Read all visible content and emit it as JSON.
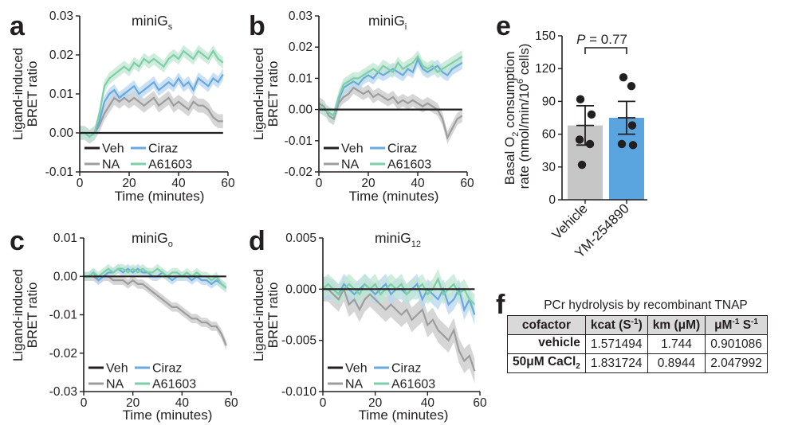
{
  "panels": {
    "a": {
      "label": "a",
      "title_main": "miniG",
      "title_sub": "s"
    },
    "b": {
      "label": "b",
      "title_main": "miniG",
      "title_sub": "i"
    },
    "c": {
      "label": "c",
      "title_main": "miniG",
      "title_sub": "o"
    },
    "d": {
      "label": "d",
      "title_main": "miniG",
      "title_sub": "12"
    },
    "e": {
      "label": "e"
    },
    "f": {
      "label": "f"
    }
  },
  "legend": {
    "veh": "Veh",
    "ciraz": "Ciraz",
    "na": "NA",
    "a61603": "A61603"
  },
  "axes": {
    "bret_ylabel_line1": "Ligand-induced",
    "bret_ylabel_line2": "BRET ratio",
    "time_xlabel": "Time (minutes)",
    "e_ylabel_line1_a": "Basal O",
    "e_ylabel_line1_sub": "2",
    "e_ylabel_line1_b": " consumption",
    "e_ylabel_line2_a": "rate (nmol/min/10",
    "e_ylabel_line2_sup": "6",
    "e_ylabel_line2_b": " cells)",
    "e_pvalue_italic": "P",
    "e_pvalue_rest": " = 0.77"
  },
  "colors": {
    "veh": "#231f20",
    "na": "#9d9d9d",
    "na_band": "#c8c8c8",
    "ciraz": "#6aa9df",
    "ciraz_band": "#b8d6f1",
    "a61603": "#7ccfa6",
    "a61603_band": "#bfe6d0",
    "vehicle_bar": "#c6c6c6",
    "ym_bar": "#5aa5e0"
  },
  "table": {
    "title": "PCr hydrolysis by recombinant TNAP",
    "headers": {
      "cofactor": "cofactor",
      "kcat_a": "kcat (S",
      "kcat_sup": "-1",
      "kcat_b": ")",
      "km": "km (μM)",
      "eff_a": "μM",
      "eff_sup1": "-1",
      "eff_b": " S",
      "eff_sup2": "-1"
    },
    "rows": [
      {
        "cofactor_a": "vehicle",
        "cofactor_sub": "",
        "kcat": "1.571494",
        "km": "1.744",
        "eff": "0.901086"
      },
      {
        "cofactor_a": "50μM CaCl",
        "cofactor_sub": "2",
        "kcat": "1.831724",
        "km": "0.8944",
        "eff": "2.047992"
      }
    ]
  },
  "chart_data": [
    {
      "panel": "a",
      "type": "line",
      "title": "miniGs",
      "xlabel": "Time (minutes)",
      "ylabel": "Ligand-induced BRET ratio",
      "xlim": [
        0,
        60
      ],
      "ylim": [
        -0.01,
        0.03
      ],
      "xticks": [
        "0",
        "20",
        "40",
        "60"
      ],
      "yticks": [
        "-0.01",
        "0.00",
        "0.01",
        "0.02",
        "0.03"
      ],
      "legend_position": "bottom-left",
      "x": [
        0,
        2,
        4,
        6,
        8,
        10,
        12,
        14,
        16,
        18,
        20,
        22,
        24,
        26,
        28,
        30,
        32,
        34,
        36,
        38,
        40,
        42,
        44,
        46,
        48,
        50,
        52,
        54,
        56,
        58
      ],
      "series": [
        {
          "name": "Veh",
          "values": [
            0,
            0,
            0,
            0,
            0,
            0,
            0,
            0,
            0,
            0,
            0,
            0,
            0,
            0,
            0,
            0,
            0,
            0,
            0,
            0,
            0,
            0,
            0,
            0,
            0,
            0,
            0,
            0,
            0,
            0
          ],
          "err": 0
        },
        {
          "name": "NA",
          "values": [
            0,
            0,
            -0.001,
            0,
            0.002,
            0.005,
            0.007,
            0.009,
            0.008,
            0.009,
            0.008,
            0.009,
            0.008,
            0.007,
            0.008,
            0.009,
            0.007,
            0.008,
            0.009,
            0.007,
            0.008,
            0.007,
            0.006,
            0.008,
            0.007,
            0.007,
            0.006,
            0.004,
            0.003,
            0.003
          ],
          "err": 0.0018
        },
        {
          "name": "Ciraz",
          "values": [
            0,
            0,
            -0.001,
            0,
            0.003,
            0.008,
            0.01,
            0.011,
            0.009,
            0.01,
            0.011,
            0.012,
            0.01,
            0.011,
            0.012,
            0.013,
            0.011,
            0.012,
            0.013,
            0.012,
            0.014,
            0.012,
            0.013,
            0.011,
            0.014,
            0.013,
            0.012,
            0.014,
            0.013,
            0.015
          ],
          "err": 0.0015
        },
        {
          "name": "A61603",
          "values": [
            0,
            0,
            -0.001,
            0,
            0.005,
            0.012,
            0.014,
            0.015,
            0.016,
            0.017,
            0.016,
            0.018,
            0.017,
            0.019,
            0.018,
            0.019,
            0.018,
            0.017,
            0.019,
            0.02,
            0.019,
            0.021,
            0.02,
            0.019,
            0.021,
            0.02,
            0.019,
            0.021,
            0.019,
            0.018
          ],
          "err": 0.0015
        }
      ]
    },
    {
      "panel": "b",
      "type": "line",
      "title": "miniGi",
      "xlabel": "Time (minutes)",
      "ylabel": "Ligand-induced BRET ratio",
      "xlim": [
        0,
        60
      ],
      "ylim": [
        -0.02,
        0.03
      ],
      "xticks": [
        "0",
        "20",
        "40",
        "60"
      ],
      "yticks": [
        "-0.02",
        "-0.01",
        "0.00",
        "0.01",
        "0.02",
        "0.03"
      ],
      "legend_position": "bottom-left",
      "x": [
        0,
        2,
        4,
        6,
        8,
        10,
        12,
        14,
        16,
        18,
        20,
        22,
        24,
        26,
        28,
        30,
        32,
        34,
        36,
        38,
        40,
        42,
        44,
        46,
        48,
        50,
        52,
        54,
        56,
        58
      ],
      "series": [
        {
          "name": "Veh",
          "values": [
            0,
            0,
            0,
            0,
            0,
            0,
            0,
            0,
            0,
            0,
            0,
            0,
            0,
            0,
            0,
            0,
            0,
            0,
            0,
            0,
            0,
            0,
            0,
            0,
            0,
            0,
            0,
            0,
            0,
            0
          ],
          "err": 0
        },
        {
          "name": "NA",
          "values": [
            0.002,
            0.001,
            -0.002,
            -0.003,
            0.002,
            0.004,
            0.005,
            0.007,
            0.006,
            0.005,
            0.006,
            0.004,
            0.005,
            0.004,
            0.003,
            0.004,
            0.002,
            0.003,
            0.002,
            0.003,
            0.002,
            0.001,
            0.002,
            0.001,
            0,
            -0.003,
            -0.009,
            -0.006,
            -0.003,
            -0.002
          ],
          "err": 0.002
        },
        {
          "name": "Ciraz",
          "values": [
            0.001,
            0,
            -0.001,
            -0.002,
            0.003,
            0.007,
            0.008,
            0.009,
            0.008,
            0.01,
            0.011,
            0.01,
            0.012,
            0.011,
            0.012,
            0.013,
            0.012,
            0.011,
            0.013,
            0.012,
            0.016,
            0.013,
            0.012,
            0.013,
            0.014,
            0.012,
            0.011,
            0.013,
            0.014,
            0.015
          ],
          "err": 0.002
        },
        {
          "name": "A61603",
          "values": [
            0.001,
            0,
            -0.001,
            -0.002,
            0.004,
            0.008,
            0.009,
            0.01,
            0.01,
            0.011,
            0.012,
            0.013,
            0.012,
            0.014,
            0.013,
            0.012,
            0.015,
            0.013,
            0.014,
            0.015,
            0.017,
            0.014,
            0.013,
            0.014,
            0.012,
            0.013,
            0.014,
            0.015,
            0.016,
            0.017
          ],
          "err": 0.002
        }
      ]
    },
    {
      "panel": "c",
      "type": "line",
      "title": "miniGo",
      "xlabel": "Time (minutes)",
      "ylabel": "Ligand-induced BRET ratio",
      "xlim": [
        0,
        60
      ],
      "ylim": [
        -0.03,
        0.01
      ],
      "xticks": [
        "0",
        "20",
        "40",
        "60"
      ],
      "yticks": [
        "-0.03",
        "-0.02",
        "-0.01",
        "0.00",
        "0.01"
      ],
      "legend_position": "bottom-left",
      "x": [
        0,
        2,
        4,
        6,
        8,
        10,
        12,
        14,
        16,
        18,
        20,
        22,
        24,
        26,
        28,
        30,
        32,
        34,
        36,
        38,
        40,
        42,
        44,
        46,
        48,
        50,
        52,
        54,
        56,
        58
      ],
      "series": [
        {
          "name": "Veh",
          "values": [
            0,
            0,
            0,
            0,
            0,
            0,
            0,
            0,
            0,
            0,
            0,
            0,
            0,
            0,
            0,
            0,
            0,
            0,
            0,
            0,
            0,
            0,
            0,
            0,
            0,
            0,
            0,
            0,
            0,
            0
          ],
          "err": 0
        },
        {
          "name": "NA",
          "values": [
            0,
            0,
            0,
            -0.001,
            0,
            0,
            -0.001,
            -0.001,
            -0.001,
            -0.002,
            -0.001,
            -0.002,
            -0.002,
            -0.003,
            -0.004,
            -0.005,
            -0.006,
            -0.007,
            -0.008,
            -0.008,
            -0.009,
            -0.01,
            -0.011,
            -0.011,
            -0.012,
            -0.012,
            -0.013,
            -0.013,
            -0.015,
            -0.018
          ],
          "err": 0.0012
        },
        {
          "name": "Ciraz",
          "values": [
            0,
            0,
            0.001,
            -0.001,
            0,
            0.001,
            0.001,
            0.002,
            0.001,
            0.002,
            0.001,
            0.002,
            0.001,
            0.001,
            0,
            0,
            0.001,
            0,
            -0.001,
            0,
            0,
            0,
            -0.001,
            0,
            -0.001,
            -0.001,
            -0.002,
            -0.001,
            -0.002,
            -0.003
          ],
          "err": 0.0012
        },
        {
          "name": "A61603",
          "values": [
            0,
            0,
            0.001,
            0,
            0.001,
            0.002,
            0.001,
            0.002,
            0.002,
            0.001,
            0.002,
            0.001,
            0.002,
            0.001,
            0.001,
            0.002,
            0.001,
            0,
            0.001,
            0.001,
            0,
            0.001,
            0,
            0.001,
            0,
            0,
            -0.001,
            0,
            -0.002,
            -0.003
          ],
          "err": 0.0012
        }
      ]
    },
    {
      "panel": "d",
      "type": "line",
      "title": "miniG12",
      "xlabel": "Time (minutes)",
      "ylabel": "Ligand-induced BRET ratio",
      "xlim": [
        0,
        60
      ],
      "ylim": [
        -0.01,
        0.005
      ],
      "xticks": [
        "0",
        "20",
        "40",
        "60"
      ],
      "yticks": [
        "-0.010",
        "-0.005",
        "0.000",
        "0.005"
      ],
      "legend_position": "bottom-left",
      "x": [
        0,
        2,
        4,
        6,
        8,
        10,
        12,
        14,
        16,
        18,
        20,
        22,
        24,
        26,
        28,
        30,
        32,
        34,
        36,
        38,
        40,
        42,
        44,
        46,
        48,
        50,
        52,
        54,
        56,
        58
      ],
      "series": [
        {
          "name": "Veh",
          "values": [
            0,
            0,
            0,
            0,
            0,
            0,
            0,
            0,
            0,
            0,
            0,
            0,
            0,
            0,
            0,
            0,
            0,
            0,
            0,
            0,
            0,
            0,
            0,
            0,
            0,
            0,
            0,
            0,
            0,
            0
          ],
          "err": 0
        },
        {
          "name": "NA",
          "values": [
            0,
            0,
            -0.0005,
            -0.001,
            0,
            -0.0015,
            -0.001,
            -0.002,
            -0.001,
            -0.0005,
            -0.001,
            -0.0015,
            -0.002,
            -0.0015,
            -0.002,
            -0.0025,
            -0.002,
            -0.003,
            -0.0025,
            -0.002,
            -0.0035,
            -0.003,
            -0.004,
            -0.0045,
            -0.005,
            -0.004,
            -0.006,
            -0.007,
            -0.0065,
            -0.008
          ],
          "err": 0.0012
        },
        {
          "name": "Ciraz",
          "values": [
            0,
            0,
            0,
            -0.0005,
            0.0005,
            0,
            -0.0005,
            0,
            0.0005,
            0,
            -0.0005,
            0,
            0.0005,
            -0.0005,
            0,
            0,
            -0.0005,
            0,
            0.0005,
            -0.001,
            0,
            -0.0005,
            -0.001,
            0,
            -0.0015,
            -0.001,
            0,
            -0.002,
            -0.001,
            -0.0025
          ],
          "err": 0.001
        },
        {
          "name": "A61603",
          "values": [
            0,
            0.0005,
            0,
            -0.0005,
            0,
            0.0005,
            0,
            -0.0005,
            0.0005,
            0,
            0.0005,
            -0.0005,
            0,
            0.0005,
            0,
            0.0005,
            -0.0005,
            0,
            0,
            0.0005,
            -0.0005,
            0,
            0.001,
            -0.0005,
            0,
            0.0005,
            -0.0005,
            0,
            -0.001,
            -0.0015
          ],
          "err": 0.001
        }
      ]
    },
    {
      "panel": "e",
      "type": "bar",
      "ylabel": "Basal O2 consumption rate (nmol/min/10^6 cells)",
      "categories": [
        "Vehicle",
        "YM-254890"
      ],
      "values": [
        68,
        75
      ],
      "sem": [
        18,
        15
      ],
      "points": [
        [
          92,
          78,
          55,
          51,
          32
        ],
        [
          112,
          104,
          68,
          51,
          50
        ]
      ],
      "ylim": [
        0,
        150
      ],
      "yticks": [
        "0",
        "30",
        "60",
        "90",
        "120",
        "150"
      ],
      "annotation": "P = 0.77"
    }
  ]
}
